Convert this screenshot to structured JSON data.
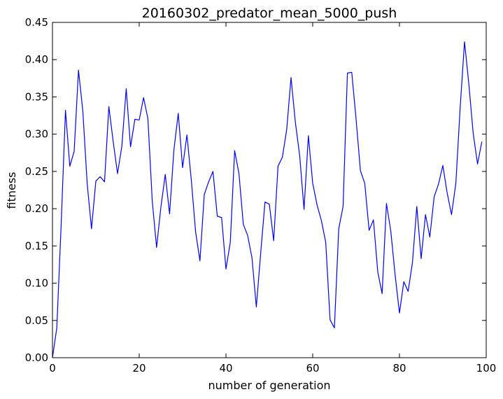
{
  "chart_data": {
    "type": "line",
    "title": "20160302_predator_mean_5000_push",
    "xlabel": "number of generation",
    "ylabel": "fitness",
    "xlim": [
      0,
      100
    ],
    "ylim": [
      0,
      0.45
    ],
    "xticks": [
      0,
      20,
      40,
      60,
      80,
      100
    ],
    "xtick_labels": [
      "0",
      "20",
      "40",
      "60",
      "80",
      "100"
    ],
    "yticks": [
      0,
      0.05,
      0.1,
      0.15,
      0.2,
      0.25,
      0.3,
      0.35,
      0.4,
      0.45
    ],
    "ytick_labels": [
      "0.00",
      "0.05",
      "0.10",
      "0.15",
      "0.20",
      "0.25",
      "0.30",
      "0.35",
      "0.40",
      "0.45"
    ],
    "grid": false,
    "line_color": "#0000ff",
    "series": [
      {
        "x": [
          0,
          1,
          2,
          3,
          4,
          5,
          6,
          7,
          8,
          9,
          10,
          11,
          12,
          13,
          14,
          15,
          16,
          17,
          18,
          19,
          20,
          21,
          22,
          23,
          24,
          25,
          26,
          27,
          28,
          29,
          30,
          31,
          32,
          33,
          34,
          35,
          36,
          37,
          38,
          39,
          40,
          41,
          42,
          43,
          44,
          45,
          46,
          47,
          48,
          49,
          50,
          51,
          52,
          53,
          54,
          55,
          56,
          57,
          58,
          59,
          60,
          61,
          62,
          63,
          64,
          65,
          66,
          67,
          68,
          69,
          70,
          71,
          72,
          73,
          74,
          75,
          76,
          77,
          78,
          79,
          80,
          81,
          82,
          83,
          84,
          85,
          86,
          87,
          88,
          89,
          90,
          91,
          92,
          93,
          94,
          95,
          96,
          97,
          98,
          99
        ],
        "y": [
          0.0,
          0.04,
          0.178,
          0.332,
          0.257,
          0.277,
          0.386,
          0.331,
          0.234,
          0.173,
          0.237,
          0.243,
          0.236,
          0.337,
          0.29,
          0.247,
          0.284,
          0.361,
          0.283,
          0.32,
          0.319,
          0.349,
          0.321,
          0.211,
          0.148,
          0.202,
          0.246,
          0.193,
          0.279,
          0.328,
          0.255,
          0.299,
          0.239,
          0.169,
          0.13,
          0.219,
          0.236,
          0.25,
          0.19,
          0.188,
          0.119,
          0.155,
          0.278,
          0.247,
          0.179,
          0.164,
          0.134,
          0.068,
          0.14,
          0.209,
          0.206,
          0.157,
          0.257,
          0.269,
          0.306,
          0.376,
          0.316,
          0.271,
          0.199,
          0.298,
          0.234,
          0.205,
          0.184,
          0.155,
          0.051,
          0.04,
          0.173,
          0.203,
          0.382,
          0.383,
          0.32,
          0.251,
          0.234,
          0.171,
          0.185,
          0.115,
          0.086,
          0.207,
          0.17,
          0.111,
          0.06,
          0.102,
          0.089,
          0.128,
          0.203,
          0.133,
          0.192,
          0.162,
          0.216,
          0.233,
          0.258,
          0.221,
          0.192,
          0.234,
          0.336,
          0.424,
          0.367,
          0.301,
          0.26,
          0.29
        ]
      }
    ]
  }
}
